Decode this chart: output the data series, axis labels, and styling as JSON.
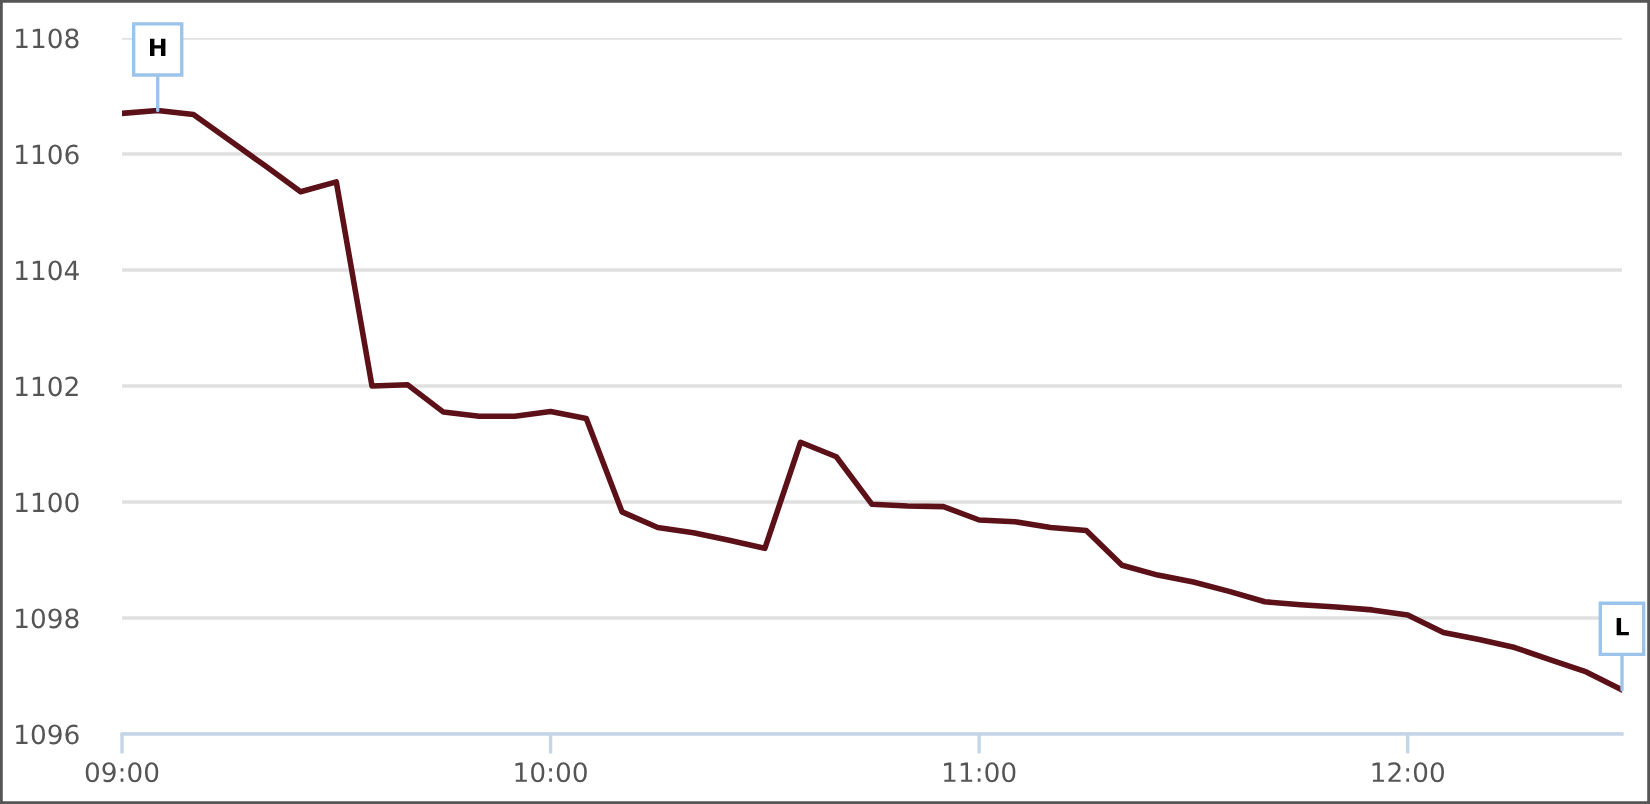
{
  "chart_data": {
    "type": "line",
    "x": [
      9,
      9.0833,
      9.1667,
      9.25,
      9.3333,
      9.4167,
      9.5,
      9.5833,
      9.6667,
      9.75,
      9.8333,
      9.9167,
      10,
      10.0833,
      10.1667,
      10.25,
      10.3333,
      10.4167,
      10.5,
      10.5833,
      10.6667,
      10.75,
      10.8333,
      10.9167,
      11,
      11.0833,
      11.1667,
      11.25,
      11.3333,
      11.4167,
      11.5,
      11.5833,
      11.6667,
      11.75,
      11.8333,
      11.9167,
      12,
      12.0833,
      12.1667,
      12.25,
      12.3333,
      12.4167,
      12.5
    ],
    "values": [
      1106.7,
      1106.75,
      1106.68,
      1106.24,
      1105.8,
      1105.35,
      1105.52,
      1102.0,
      1102.02,
      1101.55,
      1101.48,
      1101.48,
      1101.56,
      1101.44,
      1099.83,
      1099.56,
      1099.47,
      1099.34,
      1099.2,
      1101.03,
      1100.78,
      1099.96,
      1099.93,
      1099.92,
      1099.69,
      1099.66,
      1099.56,
      1099.51,
      1098.91,
      1098.74,
      1098.62,
      1098.46,
      1098.28,
      1098.23,
      1098.19,
      1098.14,
      1098.05,
      1097.75,
      1097.63,
      1097.49,
      1097.28,
      1097.07,
      1096.76
    ],
    "color": "#5c1018",
    "xlim": [
      9,
      12.5
    ],
    "xticks": [
      {
        "value": 9,
        "label": "09:00"
      },
      {
        "value": 10,
        "label": "10:00"
      },
      {
        "value": 11,
        "label": "11:00"
      },
      {
        "value": 12,
        "label": "12:00"
      }
    ],
    "ylim": [
      1096,
      1108
    ],
    "yticks": [
      1096,
      1098,
      1100,
      1102,
      1104,
      1106,
      1108
    ],
    "grid": "y",
    "marker": "none",
    "line_style": "solid",
    "annotations": [
      {
        "text": "H",
        "x": 9.0833,
        "y": 1106.75
      },
      {
        "text": "L",
        "x": 12.5,
        "y": 1096.76
      }
    ]
  }
}
